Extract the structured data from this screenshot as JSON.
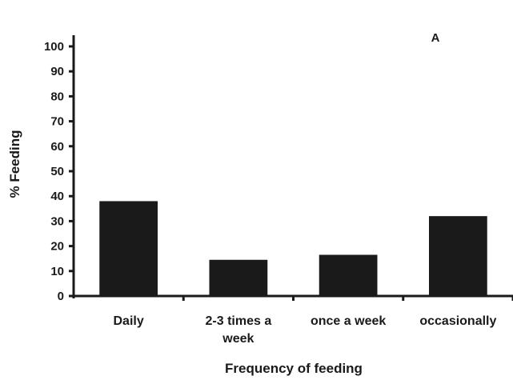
{
  "chart_data": {
    "type": "bar",
    "categories": [
      [
        "Daily"
      ],
      [
        "2-3 times a",
        "week"
      ],
      [
        "once a week"
      ],
      [
        "occasionally"
      ]
    ],
    "values": [
      38,
      14.5,
      16.5,
      32
    ],
    "xlabel": "Frequency of feeding",
    "ylabel": "% Feeding",
    "ylim": [
      0,
      100
    ],
    "yticks": [
      "0",
      "10",
      "20",
      "30",
      "40",
      "50",
      "60",
      "70",
      "80",
      "90",
      "100"
    ],
    "annotation": "A",
    "grid": false,
    "legend": "none",
    "bar_color": "#1a1a1a",
    "axis_color": "#1a1a1a"
  }
}
